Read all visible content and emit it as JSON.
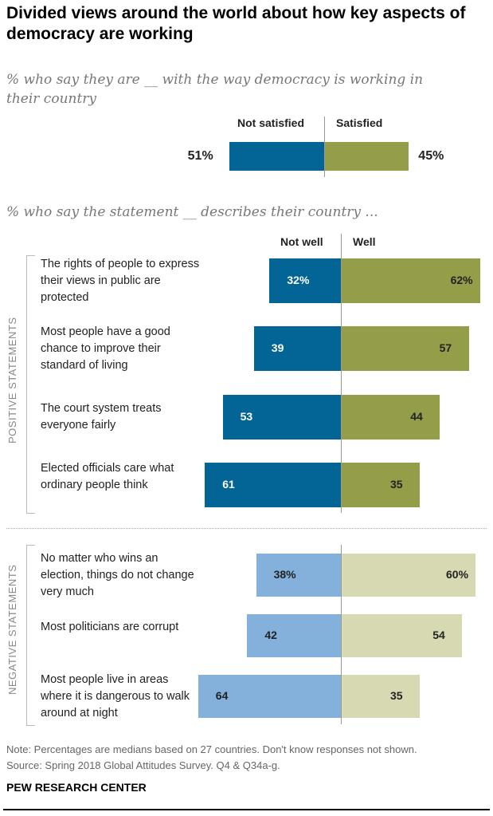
{
  "title": "Divided views around the world about how key aspects of democracy are working",
  "subtitle1": "% who say they are __ with the way democracy is working in their country",
  "subtitle2": "% who say the statement __ describes their country ...",
  "colors": {
    "dark_blue": "#036595",
    "olive": "#949d48",
    "light_blue": "#84b1dc",
    "light_olive": "#d7d9b3"
  },
  "chart_data": [
    {
      "type": "bar",
      "orientation": "diverging",
      "categories": [
        ""
      ],
      "series": [
        {
          "name": "Not satisfied",
          "values": [
            51
          ],
          "labels": [
            "51%"
          ]
        },
        {
          "name": "Satisfied",
          "values": [
            45
          ],
          "labels": [
            "45%"
          ]
        }
      ]
    },
    {
      "type": "bar",
      "orientation": "diverging",
      "legend": [
        "Not well",
        "Well"
      ],
      "groups": [
        {
          "name": "POSITIVE STATEMENTS",
          "rows": [
            {
              "label": "The rights of people to express their views in public are protected",
              "not_well": 32,
              "well": 62,
              "nw_label": "32%",
              "w_label": "62%"
            },
            {
              "label": "Most people have a good chance to improve their standard of living",
              "not_well": 39,
              "well": 57,
              "nw_label": "39",
              "w_label": "57"
            },
            {
              "label": "The court system treats everyone fairly",
              "not_well": 53,
              "well": 44,
              "nw_label": "53",
              "w_label": "44"
            },
            {
              "label": "Elected officials care what ordinary people think",
              "not_well": 61,
              "well": 35,
              "nw_label": "61",
              "w_label": "35"
            }
          ]
        },
        {
          "name": "NEGATIVE STATEMENTS",
          "rows": [
            {
              "label": "No matter who wins an election, things do not change very much",
              "not_well": 38,
              "well": 60,
              "nw_label": "38%",
              "w_label": "60%"
            },
            {
              "label": "Most politicians are corrupt",
              "not_well": 42,
              "well": 54,
              "nw_label": "42",
              "w_label": "54"
            },
            {
              "label": "Most people live in areas where it is dangerous to walk around at night",
              "not_well": 64,
              "well": 35,
              "nw_label": "64",
              "w_label": "35"
            }
          ]
        }
      ]
    }
  ],
  "note": "Note: Percentages are medians based on 27 countries. Don't know responses not shown.",
  "source": "Source: Spring 2018 Global Attitudes Survey. Q4 & Q34a-g.",
  "brand": "PEW RESEARCH CENTER"
}
